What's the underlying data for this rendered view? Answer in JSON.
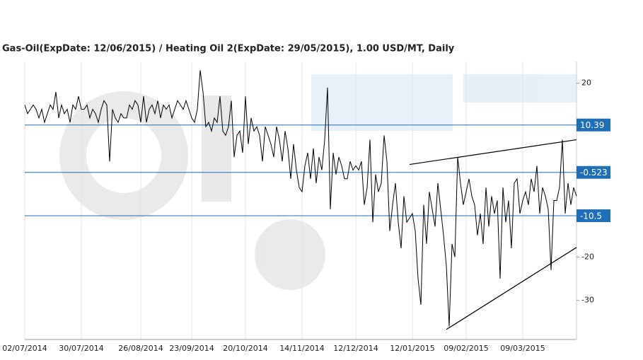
{
  "chart_data": {
    "type": "line",
    "title": "Gas-Oil(ExpDate: 12/06/2015) / Heating Oil 2(ExpDate: 29/05/2015), 1.00 USD/MT, Daily",
    "categories": [
      "02/07/2014",
      null,
      null,
      null,
      null,
      null,
      null,
      null,
      null,
      null,
      null,
      null,
      null,
      null,
      null,
      null,
      null,
      null,
      null,
      null,
      "30/07/2014",
      null,
      null,
      null,
      null,
      null,
      null,
      null,
      null,
      null,
      null,
      null,
      null,
      null,
      null,
      null,
      null,
      null,
      null,
      null,
      null,
      "26/08/2014",
      null,
      null,
      null,
      null,
      null,
      null,
      null,
      null,
      null,
      null,
      null,
      null,
      null,
      null,
      null,
      null,
      null,
      "23/09/2014",
      null,
      null,
      null,
      null,
      null,
      null,
      null,
      null,
      null,
      null,
      null,
      null,
      null,
      null,
      null,
      null,
      null,
      null,
      "20/10/2014",
      null,
      null,
      null,
      null,
      null,
      null,
      null,
      null,
      null,
      null,
      null,
      null,
      null,
      null,
      null,
      null,
      null,
      null,
      null,
      "14/11/2014",
      null,
      null,
      null,
      null,
      null,
      null,
      null,
      null,
      null,
      null,
      null,
      null,
      null,
      null,
      null,
      null,
      null,
      null,
      "12/12/2014",
      null,
      null,
      null,
      null,
      null,
      null,
      null,
      null,
      null,
      null,
      null,
      null,
      null,
      null,
      null,
      null,
      null,
      null,
      null,
      "12/01/2015",
      null,
      null,
      null,
      null,
      null,
      null,
      null,
      null,
      null,
      null,
      null,
      null,
      null,
      null,
      null,
      null,
      null,
      null,
      "09/02/2015",
      null,
      null,
      null,
      null,
      null,
      null,
      null,
      null,
      null,
      null,
      null,
      null,
      null,
      null,
      null,
      null,
      null,
      null,
      null,
      "09/03/2015",
      null,
      null,
      null,
      null,
      null,
      null,
      null,
      null,
      null,
      null,
      null,
      null,
      null,
      null,
      null,
      null,
      null,
      null,
      null
    ],
    "series": [
      {
        "color": "#000000",
        "values": [
          15,
          13,
          14,
          15,
          14,
          12,
          14,
          11,
          13,
          15,
          14,
          18,
          12,
          15,
          13,
          14,
          11,
          15,
          14,
          17,
          14,
          14,
          15,
          12,
          14,
          13,
          11,
          14,
          16,
          15,
          2,
          14,
          12,
          11,
          13,
          12,
          12,
          15,
          14,
          16,
          15,
          11,
          17,
          11,
          14,
          15,
          13,
          16,
          12,
          15,
          14,
          15,
          12,
          14,
          16,
          15,
          14,
          16,
          14,
          12,
          11,
          14,
          23,
          18,
          10,
          11,
          9,
          12,
          11,
          17,
          9,
          8,
          10,
          16,
          3,
          8,
          9,
          4,
          17,
          6,
          12,
          9,
          10,
          8,
          2,
          10,
          8,
          6,
          3,
          10,
          7,
          2,
          9,
          5,
          -2,
          6,
          0,
          -4,
          -5,
          1,
          4,
          -2,
          5,
          -3,
          3,
          0,
          7,
          19,
          -9,
          4,
          -1,
          3,
          1,
          -2,
          -2,
          2,
          0,
          1,
          0,
          2,
          -8,
          -4,
          7,
          -12,
          -1,
          -5,
          -3,
          8,
          2,
          -14,
          -8,
          -3,
          -12,
          -18,
          -6,
          -12,
          -11,
          -10,
          -14,
          -25,
          -31,
          -8,
          -17,
          -5,
          -9,
          -13,
          -3,
          -9,
          -15,
          -22,
          -36,
          -17,
          -20,
          3,
          -3,
          -8,
          -5,
          -2,
          -6,
          -8,
          -15,
          -10,
          -17,
          -4,
          -13,
          -6,
          -10,
          -7,
          -25,
          -4,
          -12,
          -7,
          -18,
          -3,
          -2,
          -10,
          -7,
          -5,
          -8,
          -2,
          -5,
          1,
          -10,
          -4,
          -6,
          -9,
          -23,
          -7,
          -7,
          -4,
          7,
          -10,
          -3,
          -8,
          -4,
          -6
        ]
      }
    ],
    "ylim": [
      -39,
      25
    ],
    "yticks": [
      20,
      -20,
      -30
    ],
    "levels": [
      10.39,
      -0.523,
      -10.5
    ],
    "level_color": "#1f6fb8",
    "trendlines": [
      {
        "x": [
          136,
          195
        ],
        "values": [
          1.3,
          7
        ]
      },
      {
        "x": [
          149,
          195
        ],
        "values": [
          -36.7,
          -17.8
        ]
      }
    ]
  }
}
